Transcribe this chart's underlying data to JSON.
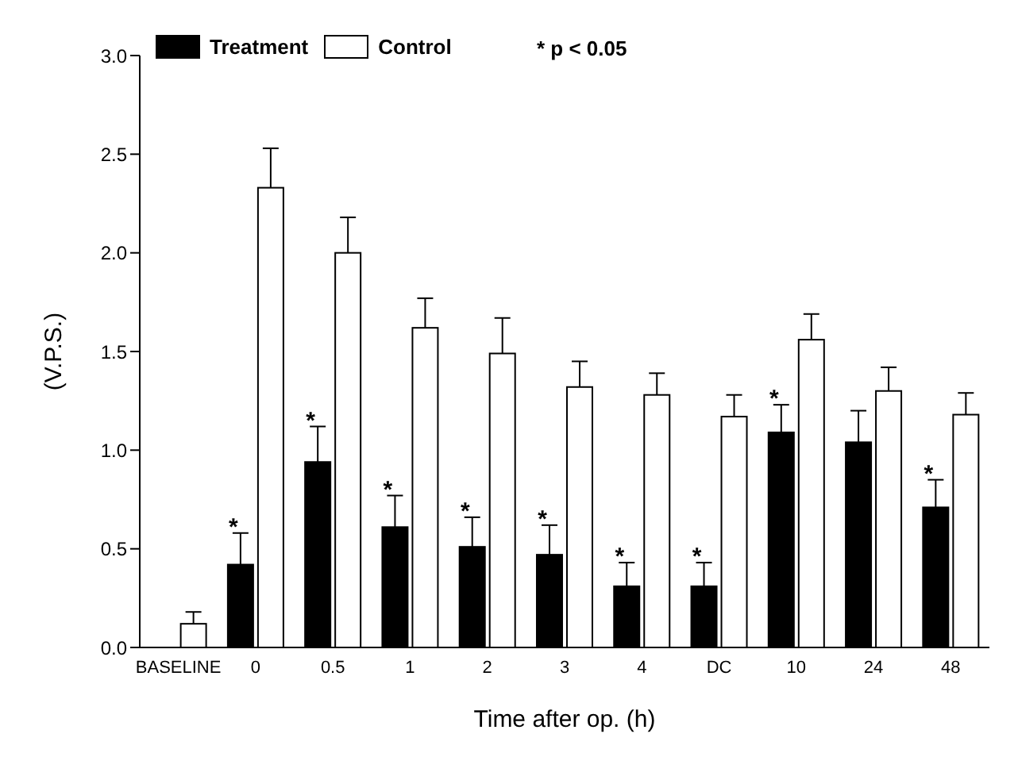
{
  "chart_data": {
    "type": "bar",
    "xlabel": "Time after op. (h)",
    "ylabel": "(V.P.S.)",
    "categories": [
      "BASELINE",
      "0",
      "0.5",
      "1",
      "2",
      "3",
      "4",
      "DC",
      "10",
      "24",
      "48"
    ],
    "series": [
      {
        "name": "Treatment",
        "color": "#000000",
        "values": [
          null,
          0.42,
          0.94,
          0.61,
          0.51,
          0.47,
          0.31,
          0.31,
          1.09,
          1.04,
          0.71
        ],
        "errors": [
          null,
          [
            0.42,
            0.58
          ],
          [
            0.94,
            1.12
          ],
          [
            0.61,
            0.77
          ],
          [
            0.51,
            0.66
          ],
          [
            0.47,
            0.62
          ],
          [
            0.31,
            0.43
          ],
          [
            0.31,
            0.43
          ],
          [
            1.09,
            1.23
          ],
          [
            1.04,
            1.2
          ],
          [
            0.71,
            0.85
          ]
        ]
      },
      {
        "name": "Control",
        "color": "#ffffff",
        "values": [
          0.12,
          2.33,
          2.0,
          1.62,
          1.49,
          1.32,
          1.28,
          1.17,
          1.56,
          1.3,
          1.18
        ],
        "errors": [
          [
            0.12,
            0.18
          ],
          [
            2.33,
            2.53
          ],
          [
            2.0,
            2.18
          ],
          [
            1.62,
            1.77
          ],
          [
            1.49,
            1.67
          ],
          [
            1.32,
            1.45
          ],
          [
            1.28,
            1.39
          ],
          [
            1.17,
            1.28
          ],
          [
            1.56,
            1.69
          ],
          [
            1.3,
            1.42
          ],
          [
            1.18,
            1.29
          ]
        ]
      }
    ],
    "ylim": [
      0,
      3
    ],
    "yticks": [
      {
        "value": 0,
        "label": "0.0"
      },
      {
        "value": 0.5,
        "label": "0.5"
      },
      {
        "value": 1,
        "label": "1.0"
      },
      {
        "value": 1.5,
        "label": "1.5"
      },
      {
        "value": 2,
        "label": "2.0"
      },
      {
        "value": 2.5,
        "label": "2.5"
      },
      {
        "value": 3,
        "label": "3.0"
      }
    ],
    "grid": false,
    "legend": "top left",
    "annotations": [
      "* p < 0.05",
      {
        "text": "*",
        "x": "0",
        "y": 0.62
      },
      {
        "text": "*",
        "x": "0.5",
        "y": 1.16
      },
      {
        "text": "*",
        "x": "1",
        "y": 0.81
      },
      {
        "text": "*",
        "x": "2",
        "y": 0.7
      },
      {
        "text": "*",
        "x": "3",
        "y": 0.66
      },
      {
        "text": "*",
        "x": "4",
        "y": 0.47
      },
      {
        "text": "*",
        "x": "DC",
        "y": 0.47
      },
      {
        "text": "*",
        "x": "10",
        "y": 1.27
      },
      {
        "text": "*",
        "x": "48",
        "y": 0.89
      }
    ]
  }
}
